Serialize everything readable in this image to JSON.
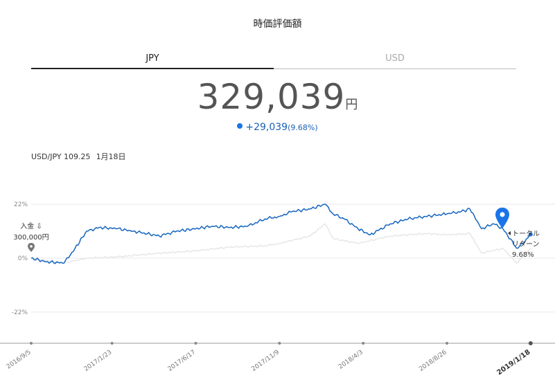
{
  "header": {
    "title": "時価評価額"
  },
  "tabs": [
    {
      "label": "JPY",
      "active": true
    },
    {
      "label": "USD",
      "active": false
    }
  ],
  "valuation": {
    "amount": "329,039",
    "unit": "円",
    "change": "+29,039",
    "change_pct": "(9.68%)"
  },
  "fx": {
    "pair_rate": "USD/JPY 109.25",
    "date": "1月18日"
  },
  "annotations": {
    "deposit_label": "入金",
    "deposit_amount": "300,000円",
    "total_return_line1": "トータル",
    "total_return_line2": "リターン",
    "total_return_pct": "9.68%"
  },
  "colors": {
    "primary": "#1565c0",
    "benchmark": "#e6e6e6",
    "marker": "#1a74e8",
    "grid": "#e8e8e8"
  },
  "chart_data": {
    "type": "line",
    "y_ticks": [
      "22%",
      "0%",
      "-22%"
    ],
    "ylim": [
      -35,
      30
    ],
    "x_ticks": [
      "2016/9/5",
      "2017/1/23",
      "2017/6/17",
      "2017/11/9",
      "2018/4/3",
      "2018/8/26",
      "2019/1/18"
    ],
    "highlight_x_tick": "2019/1/18",
    "xlim": [
      "2016/9/5",
      "2019/2/28"
    ],
    "series": [
      {
        "role": "portfolio",
        "x": [
          "2016/9/5",
          "2016/10/1",
          "2016/11/1",
          "2016/11/20",
          "2016/12/10",
          "2017/1/1",
          "2017/2/1",
          "2017/3/1",
          "2017/4/15",
          "2017/5/15",
          "2017/6/17",
          "2017/7/15",
          "2017/8/15",
          "2017/9/15",
          "2017/10/15",
          "2017/11/9",
          "2017/12/1",
          "2018/1/1",
          "2018/1/27",
          "2018/2/10",
          "2018/3/1",
          "2018/3/25",
          "2018/4/15",
          "2018/5/20",
          "2018/6/20",
          "2018/7/20",
          "2018/8/26",
          "2018/9/20",
          "2018/10/5",
          "2018/10/25",
          "2018/11/15",
          "2018/12/1",
          "2018/12/25",
          "2019/1/5",
          "2019/1/18"
        ],
        "values": [
          0,
          -1.5,
          -2,
          4,
          11,
          12.5,
          12,
          11,
          9,
          11,
          12,
          13,
          12.5,
          13,
          16,
          17,
          19,
          20,
          22,
          18,
          16,
          12,
          9.5,
          14,
          16,
          17,
          18,
          19,
          20,
          12,
          14,
          12,
          4,
          6,
          9.68
        ]
      },
      {
        "role": "benchmark",
        "x": [
          "2016/9/5",
          "2016/11/1",
          "2016/12/10",
          "2017/2/1",
          "2017/4/15",
          "2017/6/17",
          "2017/8/15",
          "2017/10/15",
          "2017/11/9",
          "2018/1/1",
          "2018/1/27",
          "2018/2/10",
          "2018/3/25",
          "2018/5/20",
          "2018/7/20",
          "2018/8/26",
          "2018/10/5",
          "2018/10/25",
          "2018/12/1",
          "2018/12/25",
          "2019/1/18"
        ],
        "values": [
          0,
          -2,
          0,
          0.5,
          2,
          3,
          4.5,
          5,
          6,
          9,
          14,
          8,
          6,
          9,
          10,
          9.5,
          10,
          2,
          4,
          -2,
          4
        ]
      }
    ]
  }
}
